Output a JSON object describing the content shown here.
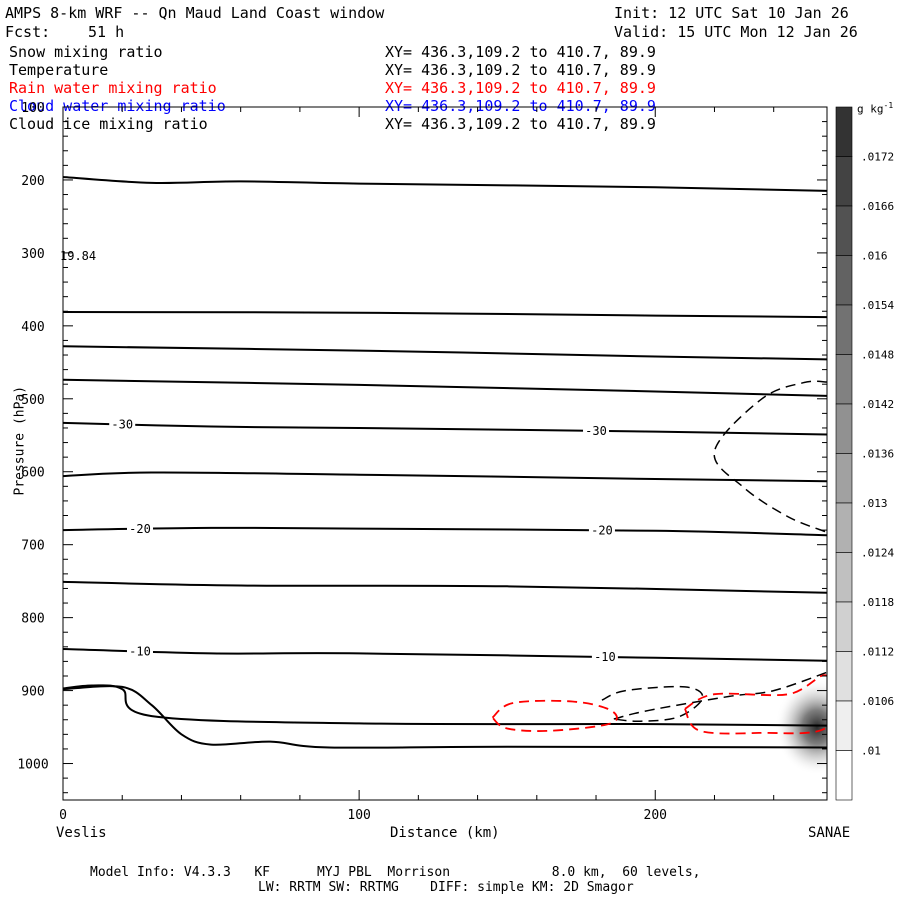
{
  "header": {
    "title": "AMPS 8-km WRF -- Qn Maud Land Coast window",
    "init": "Init: 12 UTC Sat 10 Jan 26",
    "fcst_label": "Fcst:",
    "fcst_value": "51 h",
    "valid": "Valid: 15 UTC Mon 12 Jan 26"
  },
  "fields": [
    {
      "name": "Snow mixing ratio",
      "xy": "XY= 436.3,109.2 to 410.7, 89.9",
      "color": "#000000"
    },
    {
      "name": "Temperature",
      "xy": "XY= 436.3,109.2 to 410.7, 89.9",
      "color": "#000000"
    },
    {
      "name": "Rain water mixing ratio",
      "xy": "XY= 436.3,109.2 to 410.7, 89.9",
      "color": "#ff0000"
    },
    {
      "name": "Cloud water mixing ratio",
      "xy": "XY= 436.3,109.2 to 410.7, 89.9",
      "color": "#0000ff"
    },
    {
      "name": "Cloud ice mixing ratio",
      "xy": "XY= 436.3,109.2 to 410.7, 89.9",
      "color": "#000000"
    }
  ],
  "chart_data": {
    "type": "cross-section contour",
    "title": "AMPS 8-km WRF -- Qn Maud Land Coast window",
    "xlabel": "Distance (km)",
    "ylabel": "Pressure (hPa)",
    "xlim": [
      0,
      258
    ],
    "ylim": [
      1050,
      100
    ],
    "x_ticks": [
      0,
      100,
      200
    ],
    "y_ticks": [
      100,
      200,
      300,
      400,
      500,
      600,
      700,
      800,
      900,
      1000
    ],
    "x_endpoints": {
      "left": "Veslis",
      "right": "SANAE"
    },
    "max_label": "19.84",
    "temperature_isotherms": [
      {
        "points": [
          [
            0,
            196
          ],
          [
            30,
            204
          ],
          [
            60,
            202
          ],
          [
            100,
            205
          ],
          [
            200,
            210
          ],
          [
            258,
            215
          ]
        ]
      },
      {
        "points": [
          [
            0,
            381
          ],
          [
            100,
            382
          ],
          [
            200,
            386
          ],
          [
            258,
            388
          ]
        ]
      },
      {
        "points": [
          [
            0,
            428
          ],
          [
            100,
            434
          ],
          [
            200,
            442
          ],
          [
            258,
            446
          ]
        ]
      },
      {
        "points": [
          [
            0,
            474
          ],
          [
            100,
            481
          ],
          [
            200,
            490
          ],
          [
            258,
            496
          ]
        ]
      },
      {
        "label": "-30",
        "label_x": [
          20,
          180
        ],
        "points": [
          [
            0,
            533
          ],
          [
            50,
            538
          ],
          [
            100,
            540
          ],
          [
            200,
            545
          ],
          [
            258,
            549
          ]
        ]
      },
      {
        "points": [
          [
            0,
            606
          ],
          [
            30,
            601
          ],
          [
            100,
            604
          ],
          [
            200,
            610
          ],
          [
            258,
            613
          ]
        ]
      },
      {
        "label": "-20",
        "label_x": [
          26,
          182
        ],
        "points": [
          [
            0,
            680
          ],
          [
            50,
            677
          ],
          [
            100,
            678
          ],
          [
            200,
            681
          ],
          [
            258,
            687
          ]
        ]
      },
      {
        "points": [
          [
            0,
            751
          ],
          [
            60,
            756
          ],
          [
            150,
            757
          ],
          [
            258,
            766
          ]
        ]
      },
      {
        "label": "-10",
        "label_x": [
          26,
          183
        ],
        "points": [
          [
            0,
            843
          ],
          [
            50,
            849
          ],
          [
            100,
            849
          ],
          [
            200,
            855
          ],
          [
            258,
            859
          ]
        ]
      },
      {
        "points": [
          [
            0,
            897
          ],
          [
            10,
            893
          ],
          [
            20,
            898
          ],
          [
            30,
            935
          ],
          [
            100,
            945
          ],
          [
            200,
            946
          ],
          [
            258,
            948
          ]
        ]
      },
      {
        "points": [
          [
            0,
            898
          ],
          [
            20,
            895
          ],
          [
            30,
            920
          ],
          [
            40,
            960
          ],
          [
            50,
            974
          ],
          [
            70,
            970
          ],
          [
            90,
            978
          ],
          [
            150,
            977
          ],
          [
            258,
            978
          ]
        ]
      }
    ],
    "cloud_ice_contours": [
      {
        "style": "dashed",
        "points": [
          [
            258,
            477
          ],
          [
            250,
            478
          ],
          [
            236,
            500
          ],
          [
            220,
            572
          ],
          [
            230,
            622
          ],
          [
            245,
            662
          ],
          [
            258,
            683
          ]
        ]
      },
      {
        "style": "dashed",
        "points": [
          [
            186,
            939
          ],
          [
            198,
            927
          ],
          [
            225,
            908
          ],
          [
            240,
            900
          ],
          [
            258,
            875
          ]
        ]
      },
      {
        "style": "dashed",
        "points": [
          [
            182,
            913
          ],
          [
            190,
            900
          ],
          [
            210,
            895
          ],
          [
            216,
            910
          ],
          [
            208,
            936
          ],
          [
            195,
            942
          ],
          [
            186,
            939
          ]
        ]
      }
    ],
    "rain_water_contours": [
      {
        "style": "dashed",
        "color": "#ff0000",
        "points": [
          [
            145,
            937
          ],
          [
            152,
            917
          ],
          [
            172,
            915
          ],
          [
            185,
            927
          ],
          [
            185,
            945
          ],
          [
            165,
            955
          ],
          [
            150,
            952
          ],
          [
            145,
            937
          ]
        ]
      },
      {
        "style": "dashed",
        "color": "#ff0000",
        "points": [
          [
            210,
            925
          ],
          [
            220,
            905
          ],
          [
            245,
            905
          ],
          [
            258,
            880
          ],
          [
            258,
            950
          ],
          [
            235,
            958
          ],
          [
            215,
            955
          ],
          [
            210,
            925
          ]
        ]
      }
    ],
    "snow_shading": {
      "center": [
        258,
        950
      ],
      "max_value": 0.0172
    },
    "colorbar": {
      "unit": "g kg",
      "unit_exp": "-1",
      "ticks": [
        ".0172",
        ".0166",
        ".016",
        ".0154",
        ".0148",
        ".0142",
        ".0136",
        ".013",
        ".0124",
        ".0118",
        ".0112",
        ".0106",
        ".01"
      ],
      "top_color": "#333333",
      "bottom_color": "#ffffff"
    }
  },
  "footer": {
    "line1": "Model Info: V4.3.3   KF      MYJ PBL  Morrison             8.0 km,  60 levels,",
    "line2": "LW: RRTM SW: RRTMG    DIFF: simple KM: 2D Smagor"
  }
}
